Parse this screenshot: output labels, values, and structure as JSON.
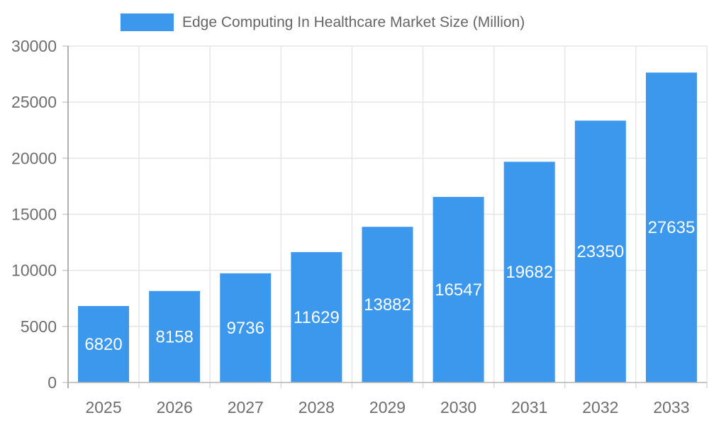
{
  "chart_data": {
    "type": "bar",
    "title": "Edge Computing In Healthcare Market Size (Million)",
    "categories": [
      "2025",
      "2026",
      "2027",
      "2028",
      "2029",
      "2030",
      "2031",
      "2032",
      "2033"
    ],
    "series": [
      {
        "name": "Edge Computing In Healthcare Market Size (Million)",
        "values": [
          6820,
          8158,
          9736,
          11629,
          13882,
          16547,
          19682,
          23350,
          27635
        ]
      }
    ],
    "xlabel": "",
    "ylabel": "",
    "ylim": [
      0,
      30000
    ],
    "yticks": [
      0,
      5000,
      10000,
      15000,
      20000,
      25000,
      30000
    ],
    "grid": true,
    "legend_position": "top",
    "colors": {
      "bar": "#3b98ec",
      "bar_value_label": "#ffffff",
      "axis_text": "#6e6e6e",
      "legend_text": "#666666",
      "gridline": "#e6e6e6",
      "y_axis_line": "#999999",
      "x_axis_line": "#b3b3b3",
      "y_tick_mark": "#cccccc",
      "x_tick_mark": "#d9d9d9",
      "background": "#ffffff"
    }
  }
}
